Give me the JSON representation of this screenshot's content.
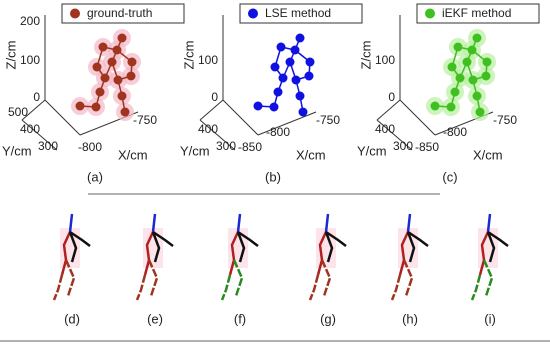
{
  "panels": [
    {
      "legend": "ground-truth",
      "axis_labels": {
        "z": "Z/cm",
        "y": "Y/cm",
        "x": "X/cm"
      },
      "z_ticks": [
        "200",
        "100",
        "0"
      ],
      "y_ticks": [
        "500",
        "400",
        "300"
      ],
      "x_ticks": [
        "-800",
        "-750"
      ],
      "caption": "(a)"
    },
    {
      "legend": "LSE method",
      "axis_labels": {
        "z": "Z/cm",
        "y": "Y/cm",
        "x": "X/cm"
      },
      "z_ticks": [
        "100",
        "0"
      ],
      "y_ticks": [
        "400",
        "300"
      ],
      "x_ticks": [
        "-850",
        "-800",
        "-750"
      ],
      "caption": "(b)"
    },
    {
      "legend": "iEKF method",
      "axis_labels": {
        "z": "Z/cm",
        "y": "Y/cm",
        "x": "X/cm"
      },
      "z_ticks": [
        "100",
        "0"
      ],
      "y_ticks": [
        "400",
        "300"
      ],
      "x_ticks": [
        "-850",
        "-800",
        "-750"
      ],
      "caption": "(c)"
    }
  ],
  "bottom_captions": [
    "(d)",
    "(e)",
    "(f)",
    "(g)",
    "(h)",
    "(i)"
  ]
}
